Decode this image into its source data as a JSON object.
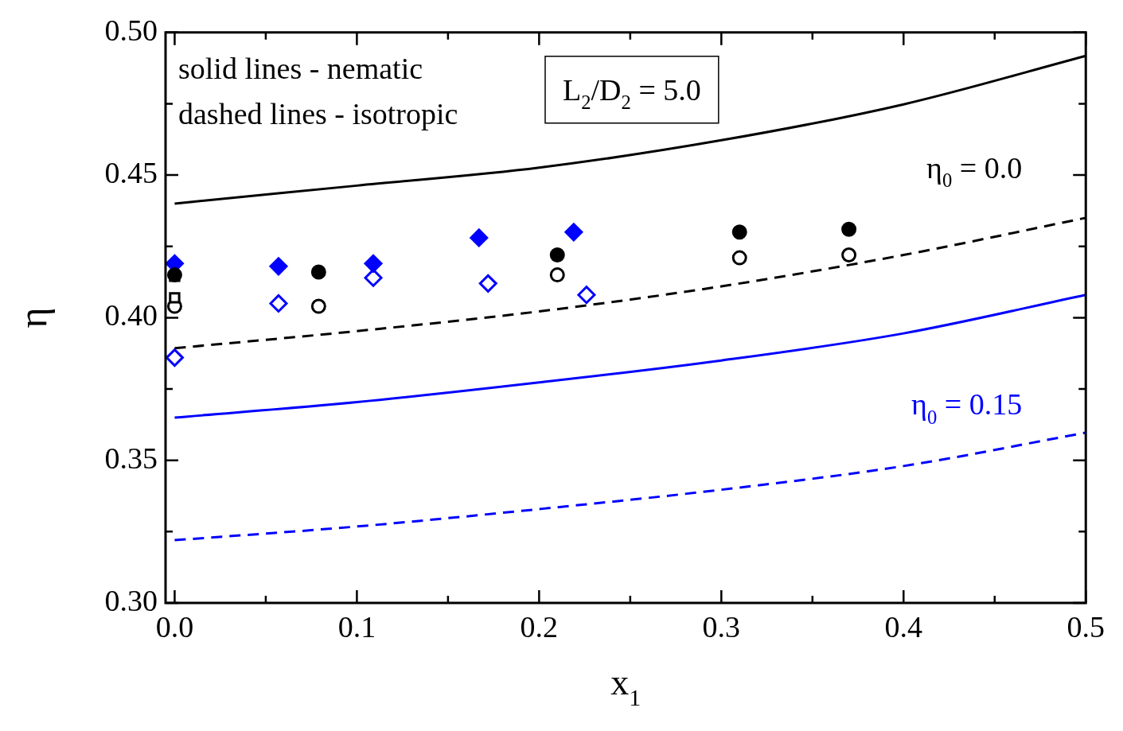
{
  "chart_data": {
    "type": "scatter",
    "xlabel": "x$_{1}$",
    "ylabel": "η",
    "xlim": [
      -0.005,
      0.5
    ],
    "ylim": [
      0.3,
      0.5
    ],
    "xticks": [
      {
        "value": 0,
        "label": "0.0"
      },
      {
        "value": 0.05,
        "label": null
      },
      0.1,
      {
        "value": 0.15,
        "label": null
      },
      0.2,
      {
        "value": 0.25,
        "label": null
      },
      0.3,
      {
        "value": 0.35,
        "label": null
      },
      0.4,
      {
        "value": 0.45,
        "label": null
      },
      0.5
    ],
    "yticks": [
      {
        "value": 0.3,
        "label": "0.30"
      },
      {
        "value": 0.325,
        "label": null
      },
      0.35,
      {
        "value": 0.375,
        "label": null
      },
      {
        "value": 0.4,
        "label": "0.40"
      },
      {
        "value": 0.425,
        "label": null
      },
      0.45,
      {
        "value": 0.475,
        "label": null
      },
      {
        "value": 0.5,
        "label": "0.50"
      }
    ],
    "grid": false,
    "legend": false,
    "annotations": [
      "solid lines - nematic",
      "dashed lines - isotropic",
      "L$_{2}$/D$_{2}$ = 5.0",
      "η$_{0}$ = 0.0",
      "η$_{0}$ = 0.15"
    ],
    "series": [
      {
        "type": "line",
        "color": "#000000",
        "line_style": "solid",
        "marker": "none",
        "x": [
          0,
          0.1,
          0.2,
          0.3,
          0.4,
          0.5
        ],
        "values": [
          0.44,
          0.4463,
          0.4526,
          0.4622,
          0.4748,
          0.4918
        ]
      },
      {
        "type": "line",
        "color": "#000000",
        "line_style": "dashed",
        "marker": "none",
        "x": [
          0,
          0.1,
          0.2,
          0.3,
          0.4,
          0.5
        ],
        "values": [
          0.3893,
          0.3953,
          0.4022,
          0.411,
          0.422,
          0.435
        ]
      },
      {
        "type": "line",
        "color": "#0000ff",
        "line_style": "solid",
        "marker": "none",
        "x": [
          0,
          0.1,
          0.2,
          0.3,
          0.4,
          0.5
        ],
        "values": [
          0.365,
          0.3704,
          0.3773,
          0.385,
          0.3945,
          0.408
        ]
      },
      {
        "type": "line",
        "color": "#0000ff",
        "line_style": "dashed",
        "marker": "none",
        "x": [
          0,
          0.1,
          0.2,
          0.3,
          0.4,
          0.5
        ],
        "values": [
          0.322,
          0.3268,
          0.3329,
          0.3397,
          0.348,
          0.3597
        ]
      },
      {
        "color": "#000000",
        "marker": "square",
        "x": [
          0
        ],
        "values": [
          0.4145
        ]
      },
      {
        "color": "#000000",
        "marker": "square",
        "colors": [
          "#ffffff"
        ],
        "x": [
          0
        ],
        "values": [
          0.407
        ]
      },
      {
        "color": "#000000",
        "marker": "circle",
        "x": [
          0,
          0.079,
          0.21,
          0.31,
          0.37
        ],
        "values": [
          0.415,
          0.416,
          0.422,
          0.43,
          0.431
        ]
      },
      {
        "color": "#000000",
        "marker": "circle",
        "colors": [
          "#ffffff",
          "#ffffff",
          "#ffffff",
          "#ffffff",
          "#ffffff"
        ],
        "x": [
          0,
          0.079,
          0.21,
          0.31,
          0.37
        ],
        "values": [
          0.404,
          0.404,
          0.415,
          0.421,
          0.422
        ]
      },
      {
        "color": "#0000ff",
        "marker": "diamond",
        "x": [
          0,
          0.057,
          0.109,
          0.167,
          0.219
        ],
        "values": [
          0.419,
          0.418,
          0.419,
          0.428,
          0.43
        ]
      },
      {
        "color": "#0000ff",
        "marker": "diamond",
        "colors": [
          "#ffffff",
          "#ffffff",
          "#ffffff",
          "#ffffff",
          "#ffffff"
        ],
        "x": [
          0,
          0.057,
          0.109,
          0.172,
          0.226
        ],
        "values": [
          0.386,
          0.405,
          0.414,
          0.412,
          0.408
        ]
      }
    ]
  }
}
